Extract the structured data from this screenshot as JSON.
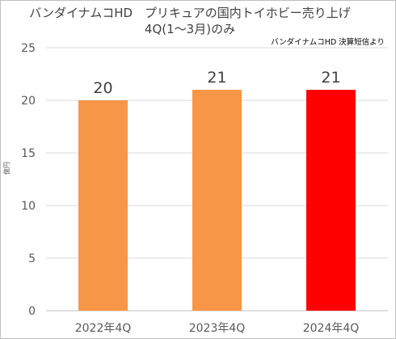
{
  "chart_data": {
    "type": "bar",
    "title_line1": "バンダイナムコHD　プリキュアの国内トイホビー売り上げ",
    "title_line2": "4Q(1～3月)のみ",
    "source_note": "バンダイナムコHD 決算短信より",
    "ylabel": "億円",
    "xlabel": "",
    "categories": [
      "2022年4Q",
      "2023年4Q",
      "2024年4Q"
    ],
    "values": [
      20,
      21,
      21
    ],
    "data_labels": [
      "20",
      "21",
      "21"
    ],
    "bar_colors": [
      "#f79646",
      "#f79646",
      "#ff0000"
    ],
    "ylim": [
      0,
      25
    ],
    "yticks": [
      0,
      5,
      10,
      15,
      20,
      25
    ],
    "grid": true,
    "gridline_color": "#d9d9d9",
    "legend": "none"
  }
}
